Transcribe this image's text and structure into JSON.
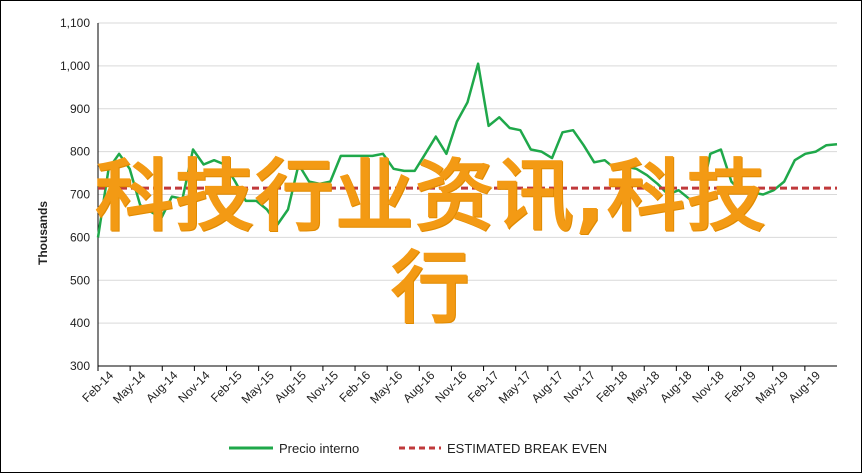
{
  "chart_data": {
    "type": "line",
    "ylabel": "Thousands",
    "ylim": [
      300,
      1100
    ],
    "yticks": [
      "1,100",
      "1,000",
      "900",
      "800",
      "700",
      "600",
      "500",
      "400",
      "300"
    ],
    "ytick_values": [
      1100,
      1000,
      900,
      800,
      700,
      600,
      500,
      400,
      300
    ],
    "grid": true,
    "legend_position": "bottom",
    "x_tick_labels": [
      "Feb-14",
      "May-14",
      "Aug-14",
      "Nov-14",
      "Feb-15",
      "May-15",
      "Aug-15",
      "Nov-15",
      "Feb-16",
      "May-16",
      "Aug-16",
      "Nov-16",
      "Feb-17",
      "May-17",
      "Aug-17",
      "Nov-17",
      "Feb-18",
      "May-18",
      "Aug-18",
      "Nov-18",
      "Feb-19",
      "May-19",
      "Aug-19"
    ],
    "series": [
      {
        "name": "Precio interno",
        "color": "#1fa84a",
        "style": "solid",
        "values": [
          600,
          760,
          795,
          760,
          675,
          660,
          645,
          695,
          690,
          805,
          770,
          780,
          770,
          730,
          685,
          685,
          665,
          630,
          665,
          770,
          730,
          725,
          730,
          790,
          790,
          790,
          790,
          795,
          760,
          755,
          755,
          795,
          835,
          795,
          870,
          915,
          1005,
          860,
          880,
          855,
          850,
          805,
          800,
          785,
          845,
          850,
          815,
          775,
          780,
          760,
          765,
          760,
          745,
          725,
          700,
          710,
          690,
          685,
          795,
          805,
          730,
          705,
          705,
          700,
          710,
          730,
          780,
          795,
          800,
          815,
          817
        ]
      },
      {
        "name": "ESTIMATED BREAK EVEN",
        "color": "#c0393b",
        "style": "dashed",
        "values": [
          715,
          715
        ]
      }
    ]
  },
  "overlay_text": [
    "科技行业资讯,科技",
    "行"
  ]
}
